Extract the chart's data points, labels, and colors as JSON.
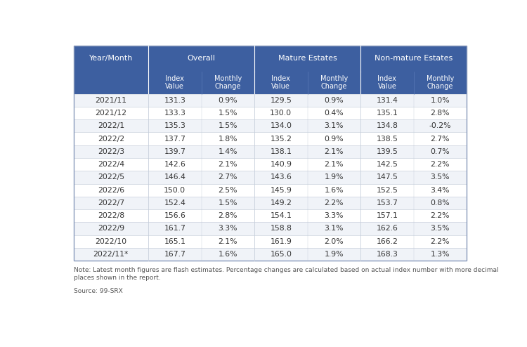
{
  "header_row1": [
    "Year/Month",
    "Overall",
    "Mature Estates",
    "Non-mature Estates"
  ],
  "header_row2_labels": [
    "Index\nValue",
    "Monthly\nChange",
    "Index\nValue",
    "Monthly\nChange",
    "Index\nValue",
    "Monthly\nChange"
  ],
  "rows": [
    [
      "2021/11",
      "131.3",
      "0.9%",
      "129.5",
      "0.9%",
      "131.4",
      "1.0%"
    ],
    [
      "2021/12",
      "133.3",
      "1.5%",
      "130.0",
      "0.4%",
      "135.1",
      "2.8%"
    ],
    [
      "2022/1",
      "135.3",
      "1.5%",
      "134.0",
      "3.1%",
      "134.8",
      "-0.2%"
    ],
    [
      "2022/2",
      "137.7",
      "1.8%",
      "135.2",
      "0.9%",
      "138.5",
      "2.7%"
    ],
    [
      "2022/3",
      "139.7",
      "1.4%",
      "138.1",
      "2.1%",
      "139.5",
      "0.7%"
    ],
    [
      "2022/4",
      "142.6",
      "2.1%",
      "140.9",
      "2.1%",
      "142.5",
      "2.2%"
    ],
    [
      "2022/5",
      "146.4",
      "2.7%",
      "143.6",
      "1.9%",
      "147.5",
      "3.5%"
    ],
    [
      "2022/6",
      "150.0",
      "2.5%",
      "145.9",
      "1.6%",
      "152.5",
      "3.4%"
    ],
    [
      "2022/7",
      "152.4",
      "1.5%",
      "149.2",
      "2.2%",
      "153.7",
      "0.8%"
    ],
    [
      "2022/8",
      "156.6",
      "2.8%",
      "154.1",
      "3.3%",
      "157.1",
      "2.2%"
    ],
    [
      "2022/9",
      "161.7",
      "3.3%",
      "158.8",
      "3.1%",
      "162.6",
      "3.5%"
    ],
    [
      "2022/10",
      "165.1",
      "2.1%",
      "161.9",
      "2.0%",
      "166.2",
      "2.2%"
    ],
    [
      "2022/11*",
      "167.7",
      "1.6%",
      "165.0",
      "1.9%",
      "168.3",
      "1.3%"
    ]
  ],
  "note_line1": "Note: Latest month figures are flash estimates. Percentage changes are calculated based on actual index number with more decimal",
  "note_line2": "places shown in the report.",
  "source": "Source: 99-SRX",
  "header_bg": "#3d5fa0",
  "header_text_color": "#ffffff",
  "row_bg_even": "#f0f3f8",
  "row_bg_odd": "#ffffff",
  "border_color": "#c8d0dc",
  "text_color": "#333333",
  "note_color": "#555555",
  "outer_bg": "#ffffff",
  "fig_width": 7.5,
  "fig_height": 4.94,
  "dpi": 100
}
